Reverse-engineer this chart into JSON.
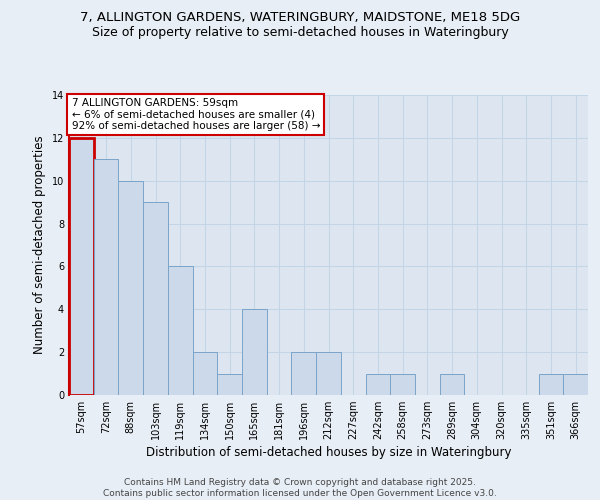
{
  "title_line1": "7, ALLINGTON GARDENS, WATERINGBURY, MAIDSTONE, ME18 5DG",
  "title_line2": "Size of property relative to semi-detached houses in Wateringbury",
  "xlabel": "Distribution of semi-detached houses by size in Wateringbury",
  "ylabel": "Number of semi-detached properties",
  "categories": [
    "57sqm",
    "72sqm",
    "88sqm",
    "103sqm",
    "119sqm",
    "134sqm",
    "150sqm",
    "165sqm",
    "181sqm",
    "196sqm",
    "212sqm",
    "227sqm",
    "242sqm",
    "258sqm",
    "273sqm",
    "289sqm",
    "304sqm",
    "320sqm",
    "335sqm",
    "351sqm",
    "366sqm"
  ],
  "values": [
    12,
    11,
    10,
    9,
    6,
    2,
    1,
    4,
    0,
    2,
    2,
    0,
    1,
    1,
    0,
    1,
    0,
    0,
    0,
    1,
    1
  ],
  "highlight_index": 0,
  "bar_color": "#ccd9ea",
  "bar_edge_color": "#7ba3c8",
  "highlight_bar_edge_color": "#cc0000",
  "annotation_box_edge_color": "#cc0000",
  "annotation_text": "7 ALLINGTON GARDENS: 59sqm\n← 6% of semi-detached houses are smaller (4)\n92% of semi-detached houses are larger (58) →",
  "annotation_fontsize": 7.5,
  "ylim": [
    0,
    14
  ],
  "yticks": [
    0,
    2,
    4,
    6,
    8,
    10,
    12,
    14
  ],
  "grid_color": "#c5d5e8",
  "background_color": "#e8eef5",
  "plot_bg_color": "#dde6f0",
  "footer_text": "Contains HM Land Registry data © Crown copyright and database right 2025.\nContains public sector information licensed under the Open Government Licence v3.0.",
  "title_fontsize": 9.5,
  "subtitle_fontsize": 9,
  "axis_label_fontsize": 8.5,
  "tick_fontsize": 7,
  "footer_fontsize": 6.5
}
